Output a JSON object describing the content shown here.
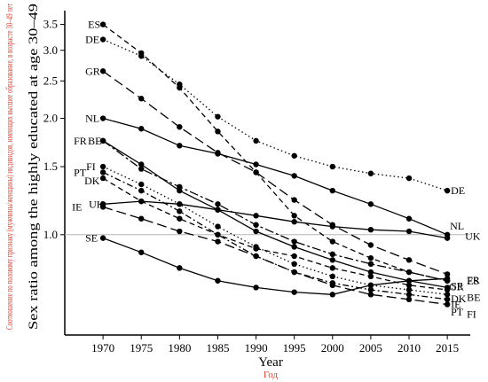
{
  "chart_data": {
    "type": "line",
    "xlabel": "Year",
    "xlabel_ru": "Год",
    "ylabel": "Sex ratio among the highly educated at age 30–49",
    "ylabel_ru": "Соотношение по половому признаку (мужчины/женщины) индивидов, имеющих высшее образование, в возрасте 30–49 лет",
    "y_scale": "log",
    "ylim": [
      0.55,
      3.8
    ],
    "xlim": [
      1965,
      2018
    ],
    "x_ticks": [
      1970,
      1975,
      1980,
      1985,
      1990,
      1995,
      2000,
      2005,
      2010,
      2015
    ],
    "y_ticks": [
      {
        "value": 1.0,
        "label": "1.0"
      },
      {
        "value": 1.5,
        "label": "1.5"
      },
      {
        "value": 2.0,
        "label": "2.0"
      },
      {
        "value": 2.5,
        "label": "2.5"
      },
      {
        "value": 3.0,
        "label": "3.0"
      },
      {
        "value": 3.5,
        "label": "3.5"
      }
    ],
    "reference_line": 1.0,
    "x": [
      1970,
      1975,
      1980,
      1985,
      1990,
      1995,
      2000,
      2005,
      2010,
      2015
    ],
    "series": [
      {
        "name": "ES",
        "dash": "dashed",
        "values": [
          3.5,
          2.95,
          2.4,
          1.85,
          1.45,
          1.12,
          0.96,
          0.87,
          0.8,
          0.76
        ]
      },
      {
        "name": "DE",
        "dash": "dotted",
        "values": [
          3.2,
          2.9,
          2.45,
          2.02,
          1.75,
          1.6,
          1.5,
          1.44,
          1.4,
          1.3
        ]
      },
      {
        "name": "GR",
        "dash": "longdash",
        "values": [
          2.65,
          2.25,
          1.9,
          1.63,
          1.45,
          1.23,
          1.06,
          0.94,
          0.86,
          0.79
        ]
      },
      {
        "name": "NL",
        "dash": "solid",
        "values": [
          2.0,
          1.88,
          1.7,
          1.62,
          1.52,
          1.42,
          1.3,
          1.2,
          1.1,
          1.0
        ]
      },
      {
        "name": "FR",
        "dash": "twodash",
        "values": [
          1.75,
          1.48,
          1.33,
          1.2,
          1.06,
          0.96,
          0.89,
          0.84,
          0.8,
          0.76
        ]
      },
      {
        "name": "BE",
        "dash": "solid",
        "values": [
          1.75,
          1.52,
          1.3,
          1.16,
          1.02,
          0.93,
          0.86,
          0.8,
          0.76,
          0.73
        ]
      },
      {
        "name": "FI",
        "dash": "dotted",
        "values": [
          1.5,
          1.35,
          1.2,
          1.05,
          0.93,
          0.84,
          0.78,
          0.74,
          0.72,
          0.7
        ]
      },
      {
        "name": "PT",
        "dash": "dashdot",
        "values": [
          1.45,
          1.3,
          1.15,
          1.0,
          0.88,
          0.8,
          0.75,
          0.72,
          0.7,
          0.68
        ]
      },
      {
        "name": "DK",
        "dash": "dashed",
        "values": [
          1.4,
          1.22,
          1.1,
          1.0,
          0.92,
          0.88,
          0.82,
          0.78,
          0.74,
          0.72
        ]
      },
      {
        "name": "IE",
        "dash": "longdash",
        "values": [
          1.18,
          1.1,
          1.02,
          0.96,
          0.88,
          0.8,
          0.74,
          0.7,
          0.68,
          0.66
        ]
      },
      {
        "name": "UK",
        "dash": "solid",
        "values": [
          1.2,
          1.22,
          1.2,
          1.16,
          1.12,
          1.08,
          1.05,
          1.03,
          1.02,
          0.98
        ]
      },
      {
        "name": "SE",
        "dash": "solid",
        "values": [
          0.98,
          0.9,
          0.82,
          0.76,
          0.73,
          0.71,
          0.7,
          0.74,
          0.76,
          0.77
        ]
      }
    ]
  }
}
